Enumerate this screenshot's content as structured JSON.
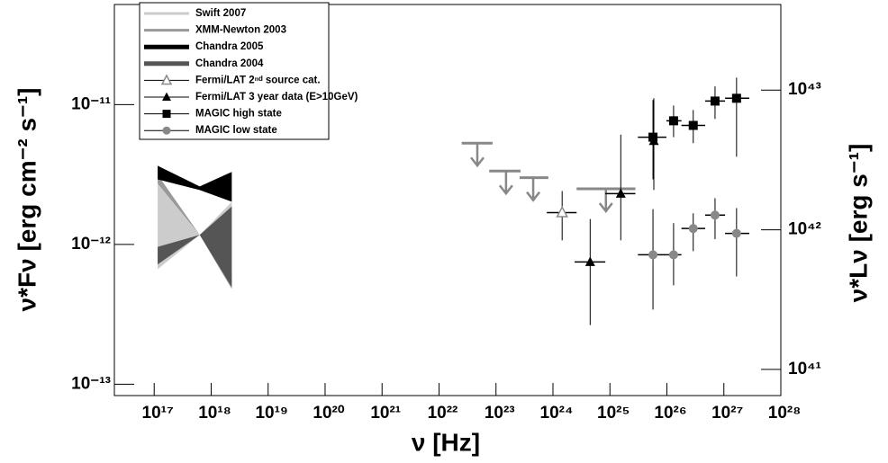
{
  "chart_data": {
    "type": "scatter",
    "x_label": "ν [Hz]",
    "y_label": "ν*Fν [erg cm⁻² s⁻¹]",
    "y2_label": "ν*Lν [erg s⁻¹]",
    "log_x": true,
    "log_y": true,
    "xlim": [
      2e+16,
      1e+28
    ],
    "ylim": [
      8.3e-14,
      5.2e-11
    ],
    "y2lim": [
      6.5e+40,
      4.1e+43
    ],
    "xticks": [
      {
        "value": 1e+17,
        "label": "10¹⁷"
      },
      {
        "value": 1e+18,
        "label": "10¹⁸"
      },
      {
        "value": 1e+19,
        "label": "10¹⁹"
      },
      {
        "value": 1e+20,
        "label": "10²⁰"
      },
      {
        "value": 1e+21,
        "label": "10²¹"
      },
      {
        "value": 1e+22,
        "label": "10²²"
      },
      {
        "value": 1e+23,
        "label": "10²³"
      },
      {
        "value": 1e+24,
        "label": "10²⁴"
      },
      {
        "value": 1e+25,
        "label": "10²⁵"
      },
      {
        "value": 1e+26,
        "label": "10²⁶"
      },
      {
        "value": 1e+27,
        "label": "10²⁷"
      },
      {
        "value": 1e+28,
        "label": "10²⁸"
      }
    ],
    "yticks": [
      {
        "value": 1e-13,
        "label": "10⁻¹³"
      },
      {
        "value": 1e-12,
        "label": "10⁻¹²"
      },
      {
        "value": 1e-11,
        "label": "10⁻¹¹"
      }
    ],
    "y2ticks": [
      {
        "value": 1e+41,
        "label": "10⁴¹"
      },
      {
        "value": 1e+42,
        "label": "10⁴²"
      },
      {
        "value": 1e+43,
        "label": "10⁴³"
      }
    ],
    "legend": "top-left",
    "series": [
      {
        "name": "Swift 2007",
        "marker": "bowtie",
        "color": "#cccccc",
        "line_width": 3,
        "x": [
          1.15e+17,
          6.3e+17,
          2.3e+18
        ],
        "upper": [
          2.72e-12,
          1.17e-12,
          2.02e-12
        ],
        "lower": [
          6.65e-13,
          1.17e-12,
          4.95e-13
        ]
      },
      {
        "name": "XMM-Newton 2003",
        "marker": "bowtie",
        "color": "#999999",
        "line_width": 3,
        "x": [
          1.15e+17,
          6.3e+17,
          2.3e+18
        ],
        "upper": [
          3.15e-12,
          1.17e-12,
          6.2e-13
        ],
        "lower": [
          2.72e-12,
          1.17e-12,
          4.8e-13
        ]
      },
      {
        "name": "Chandra 2005",
        "marker": "bowtie",
        "color": "#000000",
        "line_width": 5,
        "x": [
          1.15e+17,
          6.3e+17,
          2.3e+18
        ],
        "upper": [
          3.65e-12,
          2.6e-12,
          3.3e-12
        ],
        "lower": [
          2.92e-12,
          2.45e-12,
          2.02e-12
        ]
      },
      {
        "name": "Chandra 2004",
        "marker": "bowtie",
        "color": "#555555",
        "line_width": 5,
        "x": [
          1.15e+17,
          6.3e+17,
          2.3e+18
        ],
        "upper": [
          9.6e-13,
          1.17e-12,
          1.87e-12
        ],
        "lower": [
          7.2e-13,
          1.17e-12,
          4.95e-13
        ]
      },
      {
        "name": "Fermi/LAT 2ⁿᵈ source cat.",
        "marker": "triangle-open",
        "color": "#888888",
        "x": [
          1.45e+24
        ],
        "values": [
          1.69e-12
        ],
        "x_low": [
          7.8e+23
        ],
        "x_high": [
          2.6e+24
        ],
        "y_low": [
          1.07e-12
        ],
        "y_high": [
          2.41e-12
        ],
        "upper_limits": {
          "x": [
            4.7e+22,
            1.5e+23,
            4.5e+23,
            8.5e+24
          ],
          "values": [
            5.3e-12,
            3.35e-12,
            3e-12,
            2.5e-12
          ],
          "x_low": [
            2.5e+22,
            7.6e+22,
            2.6e+23,
            2.6e+24
          ],
          "x_high": [
            8.7e+22,
            2.7e+23,
            8.3e+23,
            2.8e+25
          ]
        }
      },
      {
        "name": "Fermi/LAT 3 year data (E>10GeV)",
        "marker": "triangle",
        "color": "#000000",
        "x": [
          4.5e+24,
          1.55e+25,
          5.9e+25
        ],
        "values": [
          7.5e-13,
          2.31e-12,
          5.5e-12
        ],
        "x_low": [
          2.4e+24,
          8.3e+24,
          null
        ],
        "x_high": [
          8.3e+24,
          2.8e+25,
          null
        ],
        "y_low": [
          2.65e-13,
          1.07e-12,
          2.45e-12
        ],
        "y_high": [
          1.52e-12,
          6.1e-12,
          1.11e-11
        ]
      },
      {
        "name": "MAGIC high state",
        "marker": "square",
        "color": "#000000",
        "x": [
          5.7e+25,
          1.31e+26,
          2.9e+26,
          7e+26,
          1.67e+27
        ],
        "values": [
          5.85e-12,
          7.66e-12,
          7.1e-12,
          1.06e-11,
          1.11e-11
        ],
        "x_low": [
          3.1e+25,
          9.8e+25,
          1.8e+26,
          4.7e+26,
          1.05e+27
        ],
        "x_high": [
          9.8e+25,
          1.8e+26,
          4.7e+26,
          1.05e+27,
          2.8e+27
        ],
        "y_low": [
          2.92e-12,
          5.85e-12,
          5.3e-12,
          7.9e-12,
          4.24e-12
        ],
        "y_high": [
          1.08e-11,
          9.85e-12,
          9.15e-12,
          1.35e-11,
          1.56e-11
        ]
      },
      {
        "name": "MAGIC low state",
        "marker": "circle",
        "color": "#888888",
        "x": [
          5.7e+25,
          1.31e+26,
          2.9e+26,
          7e+26,
          1.67e+27
        ],
        "values": [
          8.43e-13,
          8.43e-13,
          1.3e-12,
          1.62e-12,
          1.2e-12
        ],
        "x_low": [
          3.1e+25,
          9.8e+25,
          1.8e+26,
          4.7e+26,
          1.05e+27
        ],
        "x_high": [
          9.8e+25,
          1.8e+26,
          4.7e+26,
          1.05e+27,
          2.8e+27
        ],
        "y_low": [
          3.42e-13,
          5.1e-13,
          8.95e-13,
          1.09e-12,
          5.9e-13
        ],
        "y_high": [
          1.79e-12,
          1.42e-12,
          1.67e-12,
          2.14e-12,
          1.82e-12
        ]
      }
    ]
  }
}
